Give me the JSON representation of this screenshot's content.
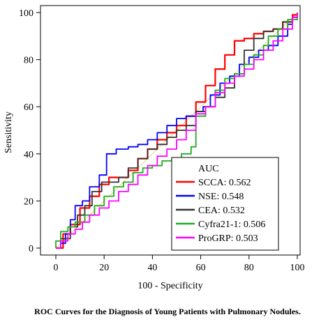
{
  "caption": "ROC Curves for the Diagnosis of Young Patients with Pulmonary Nodules.",
  "chart_data": {
    "type": "line",
    "title": "",
    "xlabel": "100 - Specificity",
    "ylabel": "Sensitivity",
    "xlim": [
      0,
      100
    ],
    "ylim": [
      0,
      100
    ],
    "xticks": [
      "0",
      "20",
      "40",
      "60",
      "80",
      "100"
    ],
    "yticks": [
      "0",
      "20",
      "40",
      "60",
      "80",
      "100"
    ],
    "grid": false,
    "legend": {
      "title": "AUC",
      "placement": "bottom-right"
    },
    "reference_line": {
      "color": "#e8d28a",
      "points": [
        [
          0,
          0
        ],
        [
          100,
          100
        ]
      ]
    },
    "series": [
      {
        "name": "SCCA: 0.562",
        "color": "#ff0000",
        "points": [
          [
            0,
            0
          ],
          [
            3,
            6
          ],
          [
            6,
            10
          ],
          [
            10,
            17
          ],
          [
            14,
            22
          ],
          [
            18,
            27
          ],
          [
            22,
            30
          ],
          [
            26,
            30
          ],
          [
            30,
            33
          ],
          [
            34,
            38
          ],
          [
            38,
            42
          ],
          [
            42,
            46
          ],
          [
            46,
            49
          ],
          [
            50,
            52
          ],
          [
            54,
            56
          ],
          [
            58,
            62
          ],
          [
            62,
            69
          ],
          [
            66,
            76
          ],
          [
            70,
            82
          ],
          [
            74,
            88
          ],
          [
            78,
            89
          ],
          [
            82,
            91
          ],
          [
            86,
            92
          ],
          [
            90,
            93
          ],
          [
            94,
            96
          ],
          [
            98,
            99
          ],
          [
            100,
            100
          ]
        ]
      },
      {
        "name": "NSE: 0.548",
        "color": "#0000ff",
        "points": [
          [
            0,
            0
          ],
          [
            2,
            2
          ],
          [
            4,
            6
          ],
          [
            6,
            12
          ],
          [
            8,
            18
          ],
          [
            11,
            20
          ],
          [
            14,
            26
          ],
          [
            18,
            31
          ],
          [
            21,
            40
          ],
          [
            25,
            42
          ],
          [
            30,
            43
          ],
          [
            34,
            44
          ],
          [
            38,
            46
          ],
          [
            42,
            49
          ],
          [
            46,
            52
          ],
          [
            50,
            55
          ],
          [
            54,
            56
          ],
          [
            58,
            58
          ],
          [
            61,
            60
          ],
          [
            64,
            65
          ],
          [
            68,
            70
          ],
          [
            72,
            73
          ],
          [
            76,
            78
          ],
          [
            80,
            81
          ],
          [
            84,
            84
          ],
          [
            88,
            86
          ],
          [
            92,
            90
          ],
          [
            96,
            95
          ],
          [
            98,
            98
          ],
          [
            100,
            100
          ]
        ]
      },
      {
        "name": "CEA: 0.532",
        "color": "#333333",
        "points": [
          [
            0,
            0
          ],
          [
            2,
            4
          ],
          [
            4,
            4
          ],
          [
            6,
            9
          ],
          [
            9,
            14
          ],
          [
            12,
            18
          ],
          [
            15,
            24
          ],
          [
            19,
            28
          ],
          [
            22,
            28
          ],
          [
            26,
            30
          ],
          [
            30,
            34
          ],
          [
            34,
            38
          ],
          [
            38,
            42
          ],
          [
            42,
            44
          ],
          [
            46,
            47
          ],
          [
            50,
            50
          ],
          [
            54,
            52
          ],
          [
            58,
            58
          ],
          [
            62,
            60
          ],
          [
            66,
            64
          ],
          [
            70,
            68
          ],
          [
            74,
            74
          ],
          [
            78,
            84
          ],
          [
            82,
            89
          ],
          [
            86,
            92
          ],
          [
            90,
            93
          ],
          [
            94,
            96
          ],
          [
            98,
            98
          ],
          [
            100,
            100
          ]
        ]
      },
      {
        "name": "Cyfra21-1: 0.506",
        "color": "#22aa22",
        "points": [
          [
            0,
            0
          ],
          [
            0,
            3
          ],
          [
            2,
            7
          ],
          [
            5,
            9
          ],
          [
            8,
            11
          ],
          [
            12,
            14
          ],
          [
            16,
            18
          ],
          [
            20,
            22
          ],
          [
            24,
            26
          ],
          [
            28,
            28
          ],
          [
            32,
            32
          ],
          [
            36,
            34
          ],
          [
            40,
            35
          ],
          [
            44,
            37
          ],
          [
            48,
            38
          ],
          [
            52,
            40
          ],
          [
            56,
            43
          ],
          [
            58,
            56
          ],
          [
            62,
            60
          ],
          [
            66,
            67
          ],
          [
            70,
            72
          ],
          [
            74,
            74
          ],
          [
            78,
            78
          ],
          [
            82,
            82
          ],
          [
            86,
            86
          ],
          [
            88,
            90
          ],
          [
            92,
            93
          ],
          [
            96,
            97
          ],
          [
            100,
            100
          ]
        ]
      },
      {
        "name": "ProGRP: 0.503",
        "color": "#ff00ff",
        "points": [
          [
            0,
            0
          ],
          [
            2,
            3
          ],
          [
            5,
            6
          ],
          [
            8,
            8
          ],
          [
            11,
            11
          ],
          [
            14,
            14
          ],
          [
            18,
            17
          ],
          [
            22,
            20
          ],
          [
            26,
            24
          ],
          [
            30,
            27
          ],
          [
            34,
            31
          ],
          [
            38,
            35
          ],
          [
            42,
            39
          ],
          [
            46,
            42
          ],
          [
            50,
            46
          ],
          [
            54,
            50
          ],
          [
            58,
            57
          ],
          [
            62,
            60
          ],
          [
            66,
            66
          ],
          [
            70,
            70
          ],
          [
            74,
            73
          ],
          [
            78,
            76
          ],
          [
            82,
            80
          ],
          [
            86,
            84
          ],
          [
            90,
            88
          ],
          [
            94,
            93
          ],
          [
            98,
            98
          ],
          [
            100,
            100
          ]
        ]
      }
    ]
  }
}
